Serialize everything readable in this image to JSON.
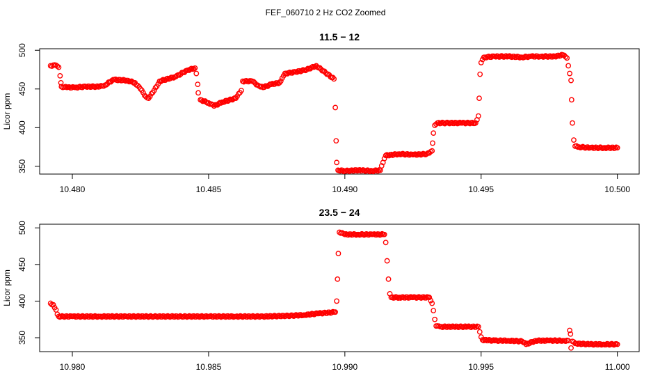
{
  "figure_title": "FEF_060710  2 Hz CO2 Zoomed",
  "colors": {
    "points": "#ff0000",
    "axes": "#000000",
    "background": "#ffffff"
  },
  "chart_data": [
    {
      "type": "scatter",
      "title": "11.5 − 12",
      "xlabel": "",
      "ylabel": "Licor ppm",
      "xlim": [
        10.4788,
        10.5008
      ],
      "ylim": [
        340,
        502
      ],
      "xticks": [
        10.48,
        10.485,
        10.49,
        10.495,
        10.5
      ],
      "xtick_labels": [
        "10.480",
        "10.485",
        "10.490",
        "10.495",
        "10.500"
      ],
      "yticks": [
        350,
        400,
        450,
        500
      ],
      "ytick_labels": [
        "350",
        "400",
        "450",
        "500"
      ],
      "series": [
        {
          "points": [
            [
              10.4792,
              480
            ],
            [
              10.47935,
              481
            ],
            [
              10.4795,
              478
            ],
            [
              10.47955,
              467
            ],
            [
              10.47958,
              458
            ],
            [
              10.4796,
              453
            ],
            [
              10.4798,
              452
            ],
            [
              10.4801,
              452
            ],
            [
              10.4805,
              453
            ],
            [
              10.481,
              453
            ],
            [
              10.4812,
              455
            ],
            [
              10.4815,
              462
            ],
            [
              10.482,
              461
            ],
            [
              10.4823,
              458
            ],
            [
              10.4825,
              450
            ],
            [
              10.4827,
              440
            ],
            [
              10.4828,
              438
            ],
            [
              10.483,
              448
            ],
            [
              10.4832,
              460
            ],
            [
              10.4838,
              466
            ],
            [
              10.4842,
              474
            ],
            [
              10.4845,
              477
            ],
            [
              10.48455,
              470
            ],
            [
              10.4846,
              456
            ],
            [
              10.48462,
              445
            ],
            [
              10.4847,
              436
            ],
            [
              10.485,
              432
            ],
            [
              10.4852,
              428
            ],
            [
              10.4855,
              433
            ],
            [
              10.486,
              438
            ],
            [
              10.4862,
              448
            ],
            [
              10.48625,
              460
            ],
            [
              10.4866,
              460
            ],
            [
              10.4868,
              455
            ],
            [
              10.487,
              452
            ],
            [
              10.4873,
              456
            ],
            [
              10.4876,
              458
            ],
            [
              10.48775,
              467
            ],
            [
              10.4878,
              470
            ],
            [
              10.4882,
              472
            ],
            [
              10.4886,
              475
            ],
            [
              10.48895,
              480
            ],
            [
              10.4896,
              463
            ],
            [
              10.48965,
              426
            ],
            [
              10.48968,
              383
            ],
            [
              10.4897,
              355
            ],
            [
              10.48975,
              345
            ],
            [
              10.49,
              344
            ],
            [
              10.4905,
              345
            ],
            [
              10.491,
              344
            ],
            [
              10.4913,
              345
            ],
            [
              10.4914,
              355
            ],
            [
              10.49145,
              360
            ],
            [
              10.4915,
              364
            ],
            [
              10.492,
              366
            ],
            [
              10.4925,
              365
            ],
            [
              10.493,
              366
            ],
            [
              10.4932,
              370
            ],
            [
              10.49322,
              380
            ],
            [
              10.49325,
              393
            ],
            [
              10.4933,
              403
            ],
            [
              10.4934,
              406
            ],
            [
              10.4938,
              406
            ],
            [
              10.4943,
              406
            ],
            [
              10.4948,
              406
            ],
            [
              10.4949,
              415
            ],
            [
              10.49493,
              438
            ],
            [
              10.49496,
              469
            ],
            [
              10.495,
              484
            ],
            [
              10.4951,
              491
            ],
            [
              10.4955,
              492
            ],
            [
              10.496,
              492
            ],
            [
              10.4965,
              491
            ],
            [
              10.4968,
              492
            ],
            [
              10.4972,
              492
            ],
            [
              10.4977,
              492
            ],
            [
              10.498,
              494
            ],
            [
              10.49815,
              490
            ],
            [
              10.4982,
              480
            ],
            [
              10.49825,
              470
            ],
            [
              10.4983,
              461
            ],
            [
              10.49832,
              436
            ],
            [
              10.49835,
              406
            ],
            [
              10.4984,
              384
            ],
            [
              10.49845,
              376
            ],
            [
              10.4986,
              375
            ],
            [
              10.499,
              374
            ],
            [
              10.4995,
              374
            ],
            [
              10.5,
              374
            ]
          ]
        }
      ]
    },
    {
      "type": "scatter",
      "title": "23.5 − 24",
      "xlabel": "",
      "ylabel": "Licor ppm",
      "xlim": [
        10.9788,
        11.0008
      ],
      "ylim": [
        331,
        505
      ],
      "xticks": [
        10.98,
        10.985,
        10.99,
        10.995,
        11.0
      ],
      "xtick_labels": [
        "10.980",
        "10.985",
        "10.990",
        "10.995",
        "11.000"
      ],
      "yticks": [
        350,
        400,
        450,
        500
      ],
      "ytick_labels": [
        "350",
        "400",
        "450",
        "500"
      ],
      "series": [
        {
          "points": [
            [
              10.9792,
              397
            ],
            [
              10.9793,
              395
            ],
            [
              10.97935,
              391
            ],
            [
              10.9794,
              388
            ],
            [
              10.97945,
              382
            ],
            [
              10.9795,
              379
            ],
            [
              10.98,
              379
            ],
            [
              10.981,
              379
            ],
            [
              10.982,
              379
            ],
            [
              10.983,
              379
            ],
            [
              10.984,
              379
            ],
            [
              10.985,
              379
            ],
            [
              10.986,
              379
            ],
            [
              10.987,
              379
            ],
            [
              10.988,
              380
            ],
            [
              10.9885,
              381
            ],
            [
              10.989,
              383
            ],
            [
              10.98965,
              385
            ],
            [
              10.9897,
              400
            ],
            [
              10.98973,
              430
            ],
            [
              10.98976,
              465
            ],
            [
              10.9898,
              494
            ],
            [
              10.99,
              491
            ],
            [
              10.9905,
              491
            ],
            [
              10.991,
              491
            ],
            [
              10.99145,
              491
            ],
            [
              10.9915,
              480
            ],
            [
              10.99155,
              455
            ],
            [
              10.9916,
              430
            ],
            [
              10.99165,
              410
            ],
            [
              10.9917,
              405
            ],
            [
              10.992,
              405
            ],
            [
              10.9925,
              405
            ],
            [
              10.9931,
              405
            ],
            [
              10.9932,
              397
            ],
            [
              10.99325,
              387
            ],
            [
              10.9933,
              375
            ],
            [
              10.99335,
              366
            ],
            [
              10.9935,
              365
            ],
            [
              10.994,
              365
            ],
            [
              10.9945,
              365
            ],
            [
              10.9949,
              365
            ],
            [
              10.99495,
              358
            ],
            [
              10.995,
              351
            ],
            [
              10.99505,
              347
            ],
            [
              10.9955,
              346
            ],
            [
              10.996,
              346
            ],
            [
              10.9965,
              345
            ],
            [
              10.99665,
              341
            ],
            [
              10.997,
              346
            ],
            [
              10.9975,
              346
            ],
            [
              10.998,
              346
            ],
            [
              10.9982,
              346
            ],
            [
              10.99825,
              360
            ],
            [
              10.99828,
              355
            ],
            [
              10.9983,
              336
            ],
            [
              10.99835,
              345
            ],
            [
              10.9985,
              342
            ],
            [
              10.999,
              341
            ],
            [
              10.9995,
              341
            ],
            [
              11.0,
              341
            ]
          ]
        }
      ]
    }
  ]
}
